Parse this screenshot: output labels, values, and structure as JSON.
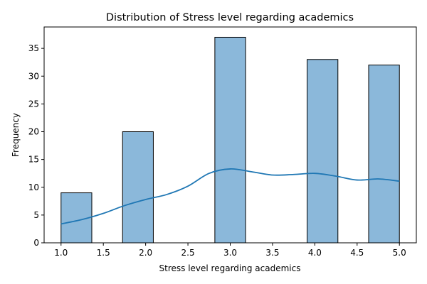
{
  "chart_data": {
    "type": "bar",
    "title": "Distribution of Stress level regarding academics",
    "xlabel": "Stress level regarding academics",
    "ylabel": "Frequency",
    "xlim": [
      0.8,
      5.2
    ],
    "ylim": [
      0,
      38.85
    ],
    "x_ticks": [
      1.0,
      1.5,
      2.0,
      2.5,
      3.0,
      3.5,
      4.0,
      4.5,
      5.0
    ],
    "x_tick_labels": [
      "1.0",
      "1.5",
      "2.0",
      "2.5",
      "3.0",
      "3.5",
      "4.0",
      "4.5",
      "5.0"
    ],
    "y_ticks": [
      0,
      5,
      10,
      15,
      20,
      25,
      30,
      35
    ],
    "y_tick_labels": [
      "0",
      "5",
      "10",
      "15",
      "20",
      "25",
      "30",
      "35"
    ],
    "bars": [
      {
        "x0": 1.0,
        "x1": 1.3636,
        "value": 9
      },
      {
        "x0": 1.7273,
        "x1": 2.0909,
        "value": 20
      },
      {
        "x0": 2.8182,
        "x1": 3.1818,
        "value": 37
      },
      {
        "x0": 3.9091,
        "x1": 4.2727,
        "value": 33
      },
      {
        "x0": 4.6364,
        "x1": 5.0,
        "value": 32
      }
    ],
    "kde": {
      "x": [
        1.0,
        1.25,
        1.5,
        1.75,
        2.0,
        2.25,
        2.5,
        2.75,
        3.0,
        3.25,
        3.5,
        3.75,
        4.0,
        4.25,
        4.5,
        4.75,
        5.0
      ],
      "y": [
        3.4,
        4.2,
        5.3,
        6.7,
        7.8,
        8.7,
        10.2,
        12.5,
        13.3,
        12.8,
        12.2,
        12.3,
        12.5,
        12.0,
        11.3,
        11.5,
        11.1
      ]
    },
    "colors": {
      "bar_fill": "#8bb8da",
      "bar_edge": "#000000",
      "kde_line": "#1f77b4"
    },
    "grid": false,
    "legend": "none"
  }
}
